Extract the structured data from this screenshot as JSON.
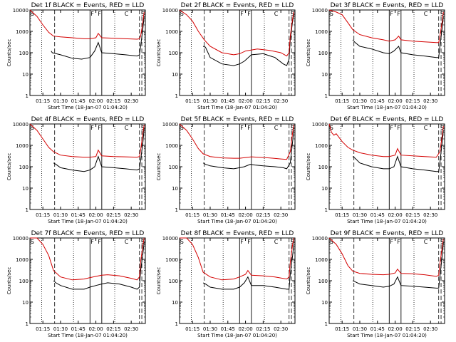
{
  "figure": {
    "ylabel": "Counts/sec",
    "xlabel": "Start Time (18-Jan-07 01:04:20)",
    "xticks": [
      "01:15",
      "01:30",
      "01:45",
      "02:00",
      "02:15",
      "02:30"
    ],
    "yticks": [
      "1",
      "10",
      "100",
      "1000",
      "10000"
    ],
    "colors": {
      "events": "#000000",
      "lld": "#d40000",
      "axes": "#000000"
    }
  },
  "chart_data": [
    {
      "type": "line",
      "title": "Det 1f BLACK = Events, RED = LLD",
      "xlabel": "Start Time (18-Jan-07 01:04:20)",
      "ylabel": "Counts/sec",
      "yscale": "log",
      "ylim": [
        1,
        10000
      ],
      "xlim": [
        "01:04",
        "02:42"
      ],
      "markers": [
        "S",
        "F",
        "F",
        "C",
        "S"
      ],
      "series": [
        {
          "name": "Events",
          "color": "#000000",
          "x": [
            "01:22",
            "01:23",
            "01:30",
            "01:40",
            "01:48",
            "01:55",
            "01:59",
            "02:02",
            "02:05",
            "02:15",
            "02:25",
            "02:35",
            "02:37",
            "02:38",
            "02:40",
            "02:41"
          ],
          "y": [
            120,
            100,
            80,
            55,
            50,
            60,
            120,
            300,
            100,
            90,
            80,
            70,
            80,
            200,
            1500,
            5000
          ]
        },
        {
          "name": "LLD",
          "color": "#d40000",
          "x": [
            "01:04",
            "01:10",
            "01:15",
            "01:20",
            "01:24",
            "01:30",
            "01:40",
            "01:50",
            "01:55",
            "02:00",
            "02:02",
            "02:05",
            "02:15",
            "02:25",
            "02:35",
            "02:37",
            "02:38",
            "02:40",
            "02:41"
          ],
          "y": [
            10000,
            5000,
            2000,
            900,
            600,
            550,
            500,
            450,
            450,
            500,
            800,
            500,
            480,
            450,
            430,
            450,
            600,
            3000,
            8000
          ]
        }
      ]
    },
    {
      "type": "line",
      "title": "Det 2f BLACK = Events, RED = LLD",
      "xlabel": "Start Time (18-Jan-07 01:04:20)",
      "ylabel": "Counts/sec",
      "yscale": "log",
      "ylim": [
        1,
        10000
      ],
      "xlim": [
        "01:04",
        "02:42"
      ],
      "markers": [
        "S",
        "F",
        "F",
        "C",
        "S"
      ],
      "series": [
        {
          "name": "Events",
          "color": "#000000",
          "x": [
            "01:24",
            "01:26",
            "01:30",
            "01:40",
            "01:50",
            "01:55",
            "01:59",
            "02:05",
            "02:15",
            "02:25",
            "02:32",
            "02:35",
            "02:37",
            "02:38",
            "02:40",
            "02:41"
          ],
          "y": [
            200,
            180,
            60,
            30,
            25,
            30,
            40,
            80,
            90,
            60,
            30,
            25,
            50,
            400,
            3000,
            6000
          ]
        },
        {
          "name": "LLD",
          "color": "#d40000",
          "x": [
            "01:04",
            "01:10",
            "01:15",
            "01:20",
            "01:25",
            "01:30",
            "01:40",
            "01:50",
            "01:55",
            "02:00",
            "02:10",
            "02:20",
            "02:30",
            "02:35",
            "02:37",
            "02:38",
            "02:40",
            "02:41"
          ],
          "y": [
            10000,
            6000,
            3000,
            1000,
            400,
            200,
            100,
            80,
            90,
            120,
            150,
            130,
            100,
            70,
            100,
            600,
            4000,
            8000
          ]
        }
      ]
    },
    {
      "type": "line",
      "title": "Det 3f BLACK = Events, RED = LLD",
      "xlabel": "Start Time (18-Jan-07 01:04:20)",
      "ylabel": "Counts/sec",
      "yscale": "log",
      "ylim": [
        1,
        10000
      ],
      "xlim": [
        "01:04",
        "02:42"
      ],
      "markers": [
        "S",
        "F",
        "F",
        "C",
        "S"
      ],
      "series": [
        {
          "name": "Events",
          "color": "#000000",
          "x": [
            "01:24",
            "01:26",
            "01:30",
            "01:40",
            "01:50",
            "01:55",
            "01:59",
            "02:03",
            "02:05",
            "02:15",
            "02:25",
            "02:35",
            "02:37",
            "02:38",
            "02:40",
            "02:41"
          ],
          "y": [
            400,
            300,
            200,
            150,
            100,
            90,
            120,
            200,
            100,
            80,
            70,
            60,
            60,
            200,
            1500,
            5000
          ]
        },
        {
          "name": "LLD",
          "color": "#d40000",
          "x": [
            "01:04",
            "01:10",
            "01:15",
            "01:20",
            "01:24",
            "01:30",
            "01:40",
            "01:50",
            "01:55",
            "02:00",
            "02:03",
            "02:05",
            "02:15",
            "02:25",
            "02:35",
            "02:37",
            "02:38",
            "02:40",
            "02:41"
          ],
          "y": [
            10000,
            8000,
            6000,
            2500,
            1200,
            700,
            500,
            400,
            350,
            400,
            600,
            400,
            350,
            320,
            300,
            300,
            600,
            3000,
            8000
          ]
        }
      ]
    },
    {
      "type": "line",
      "title": "Det 4f BLACK = Events, RED = LLD",
      "xlabel": "Start Time (18-Jan-07 01:04:20)",
      "ylabel": "Counts/sec",
      "yscale": "log",
      "ylim": [
        1,
        10000
      ],
      "xlim": [
        "01:04",
        "02:42"
      ],
      "markers": [
        "S",
        "F",
        "F",
        "C",
        "S"
      ],
      "series": [
        {
          "name": "Events",
          "color": "#000000",
          "x": [
            "01:24",
            "01:26",
            "01:30",
            "01:40",
            "01:50",
            "01:55",
            "01:59",
            "02:02",
            "02:05",
            "02:15",
            "02:25",
            "02:35",
            "02:37",
            "02:38",
            "02:40",
            "02:41"
          ],
          "y": [
            150,
            130,
            90,
            70,
            60,
            70,
            100,
            300,
            100,
            90,
            80,
            70,
            80,
            200,
            1500,
            6000
          ]
        },
        {
          "name": "LLD",
          "color": "#d40000",
          "x": [
            "01:04",
            "01:10",
            "01:15",
            "01:20",
            "01:24",
            "01:30",
            "01:40",
            "01:50",
            "01:55",
            "02:00",
            "02:02",
            "02:05",
            "02:15",
            "02:25",
            "02:35",
            "02:37",
            "02:38",
            "02:40",
            "02:41"
          ],
          "y": [
            10000,
            5000,
            2000,
            800,
            500,
            350,
            300,
            280,
            280,
            300,
            600,
            320,
            300,
            290,
            280,
            300,
            600,
            4000,
            9000
          ]
        }
      ]
    },
    {
      "type": "line",
      "title": "Det 5f BLACK = Events, RED = LLD",
      "xlabel": "Start Time (18-Jan-07 01:04:20)",
      "ylabel": "Counts/sec",
      "yscale": "log",
      "ylim": [
        1,
        10000
      ],
      "xlim": [
        "01:04",
        "02:42"
      ],
      "markers": [
        "S",
        "F",
        "F",
        "C",
        "S"
      ],
      "series": [
        {
          "name": "Events",
          "color": "#000000",
          "x": [
            "01:24",
            "01:26",
            "01:30",
            "01:40",
            "01:50",
            "01:55",
            "01:59",
            "02:04",
            "02:08",
            "02:15",
            "02:25",
            "02:32",
            "02:35",
            "02:38",
            "02:40",
            "02:41"
          ],
          "y": [
            150,
            130,
            110,
            90,
            80,
            90,
            100,
            130,
            120,
            110,
            100,
            90,
            80,
            150,
            1500,
            5000
          ]
        },
        {
          "name": "LLD",
          "color": "#d40000",
          "x": [
            "01:04",
            "01:10",
            "01:15",
            "01:20",
            "01:24",
            "01:30",
            "01:40",
            "01:50",
            "01:55",
            "02:00",
            "02:05",
            "02:10",
            "02:20",
            "02:30",
            "02:35",
            "02:38",
            "02:40",
            "02:41"
          ],
          "y": [
            10000,
            5000,
            2000,
            700,
            400,
            300,
            260,
            250,
            250,
            270,
            290,
            280,
            260,
            230,
            220,
            500,
            4000,
            9000
          ]
        }
      ]
    },
    {
      "type": "line",
      "title": "Det 6f BLACK = Events, RED = LLD",
      "xlabel": "Start Time (18-Jan-07 01:04:20)",
      "ylabel": "Counts/sec",
      "yscale": "log",
      "ylim": [
        1,
        10000
      ],
      "xlim": [
        "01:04",
        "02:42"
      ],
      "markers": [
        "S",
        "F",
        "F",
        "C",
        "S"
      ],
      "series": [
        {
          "name": "Events",
          "color": "#000000",
          "x": [
            "01:24",
            "01:26",
            "01:30",
            "01:40",
            "01:50",
            "01:55",
            "01:59",
            "02:02",
            "02:05",
            "02:15",
            "02:25",
            "02:35",
            "02:37",
            "02:38",
            "02:40",
            "02:41"
          ],
          "y": [
            300,
            250,
            150,
            100,
            80,
            80,
            100,
            300,
            100,
            80,
            70,
            60,
            60,
            150,
            1500,
            5000
          ]
        },
        {
          "name": "LLD",
          "color": "#d40000",
          "x": [
            "01:04",
            "01:06",
            "01:08",
            "01:10",
            "01:15",
            "01:20",
            "01:24",
            "01:30",
            "01:40",
            "01:50",
            "01:55",
            "02:00",
            "02:02",
            "02:05",
            "02:15",
            "02:25",
            "02:35",
            "02:38",
            "02:40",
            "02:41"
          ],
          "y": [
            10000,
            4000,
            3000,
            3500,
            1500,
            800,
            600,
            450,
            350,
            300,
            300,
            350,
            700,
            350,
            320,
            300,
            280,
            500,
            3000,
            8000
          ]
        }
      ]
    },
    {
      "type": "line",
      "title": "Det 7f BLACK = Events, RED = LLD",
      "xlabel": "Start Time (18-Jan-07 01:04:20)",
      "ylabel": "Counts/sec",
      "yscale": "log",
      "ylim": [
        1,
        10000
      ],
      "xlim": [
        "01:04",
        "02:42"
      ],
      "markers": [
        "S",
        "F",
        "F",
        "C",
        "S"
      ],
      "series": [
        {
          "name": "Events",
          "color": "#000000",
          "x": [
            "01:24",
            "01:26",
            "01:30",
            "01:40",
            "01:50",
            "01:55",
            "02:00",
            "02:05",
            "02:10",
            "02:20",
            "02:30",
            "02:35",
            "02:37",
            "02:38",
            "02:40",
            "02:41"
          ],
          "y": [
            100,
            80,
            60,
            40,
            40,
            50,
            60,
            70,
            80,
            70,
            50,
            40,
            50,
            300,
            2000,
            6000
          ]
        },
        {
          "name": "LLD",
          "color": "#d40000",
          "x": [
            "01:04",
            "01:10",
            "01:15",
            "01:20",
            "01:24",
            "01:30",
            "01:40",
            "01:50",
            "01:55",
            "02:00",
            "02:05",
            "02:10",
            "02:20",
            "02:30",
            "02:35",
            "02:37",
            "02:38",
            "02:40",
            "02:41"
          ],
          "y": [
            10000,
            10000,
            5000,
            1500,
            300,
            150,
            110,
            120,
            140,
            160,
            180,
            190,
            170,
            130,
            110,
            150,
            800,
            5000,
            10000
          ]
        }
      ]
    },
    {
      "type": "line",
      "title": "Det 8f BLACK = Events, RED = LLD",
      "xlabel": "Start Time (18-Jan-07 01:04:20)",
      "ylabel": "Counts/sec",
      "yscale": "log",
      "ylim": [
        1,
        10000
      ],
      "xlim": [
        "01:04",
        "02:42"
      ],
      "markers": [
        "S",
        "F",
        "F",
        "C",
        "S"
      ],
      "series": [
        {
          "name": "Events",
          "color": "#000000",
          "x": [
            "01:24",
            "01:26",
            "01:30",
            "01:40",
            "01:50",
            "01:55",
            "01:59",
            "02:02",
            "02:05",
            "02:15",
            "02:25",
            "02:35",
            "02:37",
            "02:38",
            "02:40",
            "02:41"
          ],
          "y": [
            80,
            70,
            50,
            40,
            40,
            50,
            80,
            150,
            60,
            60,
            50,
            40,
            40,
            200,
            1500,
            5000
          ]
        },
        {
          "name": "LLD",
          "color": "#d40000",
          "x": [
            "01:04",
            "01:10",
            "01:15",
            "01:20",
            "01:24",
            "01:30",
            "01:40",
            "01:50",
            "01:55",
            "02:00",
            "02:02",
            "02:05",
            "02:15",
            "02:25",
            "02:35",
            "02:37",
            "02:38",
            "02:40",
            "02:41"
          ],
          "y": [
            10000,
            10000,
            5000,
            1200,
            250,
            150,
            110,
            120,
            150,
            200,
            300,
            180,
            170,
            150,
            120,
            150,
            700,
            5000,
            10000
          ]
        }
      ]
    },
    {
      "type": "line",
      "title": "Det 9f BLACK = Events, RED = LLD",
      "xlabel": "Start Time (18-Jan-07 01:04:20)",
      "ylabel": "Counts/sec",
      "yscale": "log",
      "ylim": [
        1,
        10000
      ],
      "xlim": [
        "01:04",
        "02:42"
      ],
      "markers": [
        "S",
        "F",
        "F",
        "C",
        "S"
      ],
      "series": [
        {
          "name": "Events",
          "color": "#000000",
          "x": [
            "01:24",
            "01:26",
            "01:30",
            "01:40",
            "01:50",
            "01:55",
            "01:59",
            "02:02",
            "02:05",
            "02:15",
            "02:25",
            "02:35",
            "02:37",
            "02:38",
            "02:40",
            "02:41"
          ],
          "y": [
            100,
            90,
            70,
            60,
            50,
            55,
            70,
            150,
            60,
            55,
            50,
            45,
            45,
            150,
            1500,
            6000
          ]
        },
        {
          "name": "LLD",
          "color": "#d40000",
          "x": [
            "01:04",
            "01:10",
            "01:15",
            "01:20",
            "01:24",
            "01:30",
            "01:40",
            "01:50",
            "01:55",
            "02:00",
            "02:02",
            "02:05",
            "02:15",
            "02:25",
            "02:35",
            "02:37",
            "02:38",
            "02:40",
            "02:41"
          ],
          "y": [
            10000,
            5000,
            1800,
            500,
            280,
            220,
            200,
            190,
            200,
            230,
            350,
            220,
            210,
            190,
            160,
            180,
            600,
            4000,
            9000
          ]
        }
      ]
    }
  ]
}
